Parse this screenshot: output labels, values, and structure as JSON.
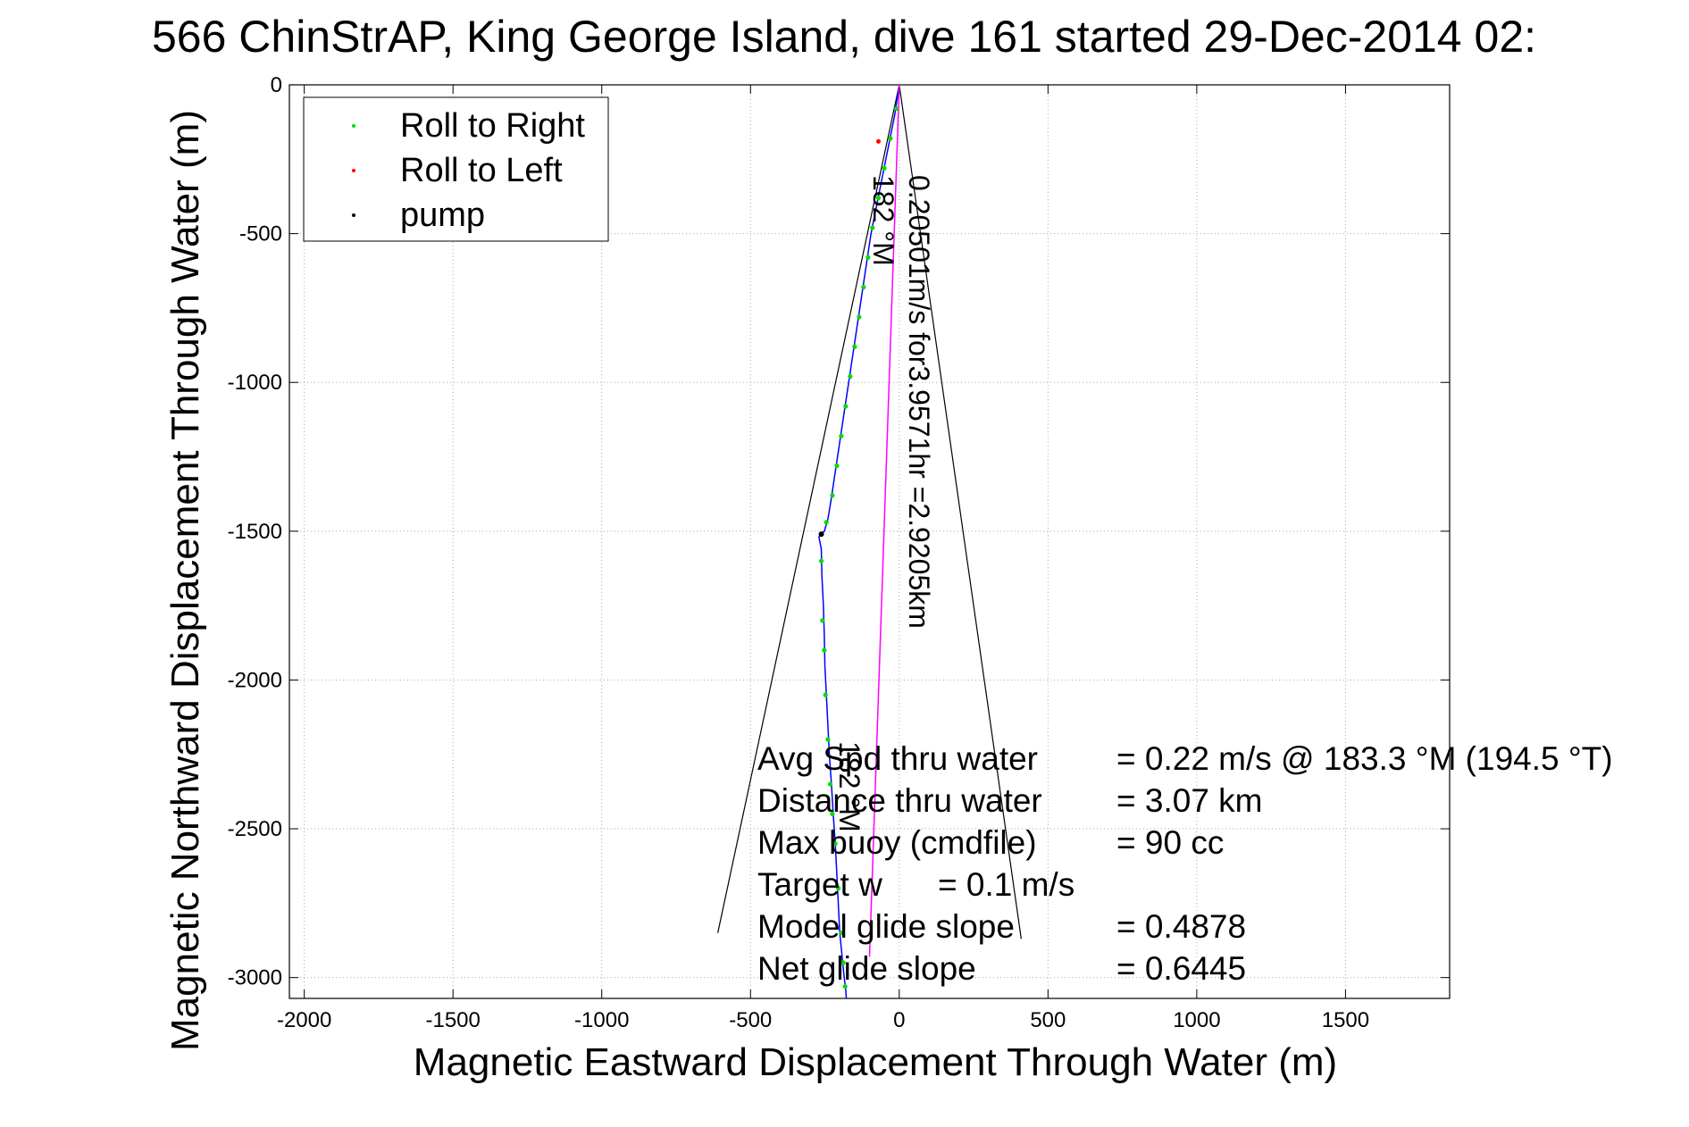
{
  "chart_data": {
    "type": "line",
    "title": "566 ChinStrAP, King George Island, dive 161 started 29-Dec-2014 02:",
    "xlabel": "Magnetic Eastward Displacement Through Water (m)",
    "ylabel": "Magnetic Northward Displacement Through Water (m)",
    "xlim": [
      -2050,
      1850
    ],
    "ylim": [
      -3070,
      0
    ],
    "x_ticks": [
      -2000,
      -1500,
      -1000,
      -500,
      0,
      500,
      1000,
      1500
    ],
    "y_ticks": [
      0,
      -500,
      -1000,
      -1500,
      -2000,
      -2500,
      -3000
    ],
    "grid": true,
    "legend": {
      "placement": "top-left",
      "entries": [
        {
          "label": "Roll to Right",
          "color": "#00dd00"
        },
        {
          "label": "Roll to Left",
          "color": "#ff0000"
        },
        {
          "label": "pump",
          "color": "#000000"
        }
      ]
    },
    "series": [
      {
        "name": "track",
        "color": "#0000ff",
        "x": [
          0,
          -15,
          -35,
          -55,
          -75,
          -95,
          -110,
          -125,
          -140,
          -155,
          -170,
          -185,
          -200,
          -215,
          -230,
          -240,
          -252,
          -262,
          -270,
          -262,
          -260,
          -255,
          -252,
          -250,
          -245,
          -240,
          -235,
          -228,
          -222,
          -215,
          -210,
          -205,
          -200,
          -195,
          -190,
          -185,
          -180,
          -178
        ],
        "y": [
          0,
          -100,
          -200,
          -300,
          -400,
          -500,
          -600,
          -700,
          -800,
          -900,
          -1000,
          -1100,
          -1200,
          -1300,
          -1400,
          -1460,
          -1500,
          -1510,
          -1520,
          -1560,
          -1650,
          -1750,
          -1850,
          -1950,
          -2050,
          -2150,
          -2250,
          -2350,
          -2450,
          -2550,
          -2650,
          -2750,
          -2850,
          -2900,
          -2950,
          -3000,
          -3040,
          -3070
        ]
      },
      {
        "name": "roll_right_points",
        "color": "#00dd00",
        "x": [
          -10,
          -30,
          -50,
          -70,
          -90,
          -105,
          -120,
          -135,
          -150,
          -165,
          -180,
          -195,
          -210,
          -225,
          -245,
          -262,
          -258,
          -252,
          -248,
          -240,
          -232,
          -225,
          -215,
          -205,
          -195,
          -188,
          -182
        ],
        "y": [
          -80,
          -180,
          -280,
          -380,
          -480,
          -580,
          -680,
          -780,
          -880,
          -980,
          -1080,
          -1180,
          -1280,
          -1380,
          -1470,
          -1600,
          -1800,
          -1900,
          -2050,
          -2200,
          -2350,
          -2450,
          -2550,
          -2700,
          -2850,
          -2950,
          -3030
        ]
      },
      {
        "name": "magenta_heading",
        "color": "#ff00ff",
        "x": [
          0,
          -100
        ],
        "y": [
          0,
          -2930
        ]
      }
    ],
    "annotations": {
      "speed_line": "0.20501m/s for3.9571hr =2.9205km",
      "heading_top": "182 °M",
      "heading_bottom": "182 °M",
      "stats": [
        {
          "label": "Avg Spd thru water",
          "value": "=  0.22 m/s @ 183.3 °M (194.5 °T)"
        },
        {
          "label": "Distance thru water",
          "value": "=  3.07 km"
        },
        {
          "label": "Max buoy (cmdfile)",
          "value": "= 90 cc"
        },
        {
          "label": "Target w",
          "value": "= 0.1 m/s"
        },
        {
          "label": "Model glide slope",
          "value": "= 0.4878"
        },
        {
          "label": "Net glide slope",
          "value": "= 0.6445"
        }
      ]
    },
    "cone_lines": [
      {
        "x": [
          0,
          -610
        ],
        "y": [
          0,
          -2850
        ]
      },
      {
        "x": [
          0,
          410
        ],
        "y": [
          0,
          -2870
        ]
      }
    ]
  }
}
